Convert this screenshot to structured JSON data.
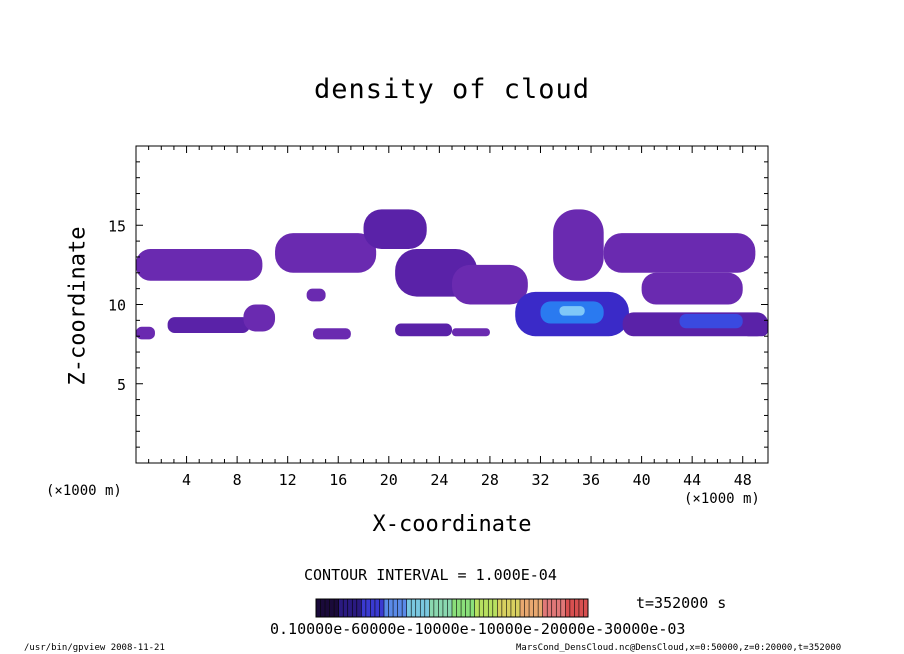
{
  "chart_data": {
    "type": "heatmap",
    "title": "density of cloud",
    "xlabel": "X-coordinate",
    "ylabel": "Z-coordinate",
    "x_unit_left": "(×1000 m)",
    "x_unit_right": "(×1000 m)",
    "xlim": [
      0,
      50
    ],
    "ylim": [
      0,
      20
    ],
    "x_ticks": [
      4,
      8,
      12,
      16,
      20,
      24,
      28,
      32,
      36,
      40,
      44,
      48
    ],
    "y_ticks": [
      5,
      10,
      15
    ],
    "contour_interval": "CONTOUR INTERVAL = 1.000E-04",
    "time_label": "t=352000 s",
    "colorbar_labels": "0.10000e-60000e-10000e-10000e-20000e-30000e-03",
    "colorbar_colors": [
      "#1a0a3a",
      "#2a1a80",
      "#3a3ad0",
      "#5a8ae8",
      "#7ac8e0",
      "#8ad8b0",
      "#8ae07a",
      "#b8e060",
      "#d8d060",
      "#e8a870",
      "#e07878",
      "#d85050"
    ],
    "cloud_regions": [
      {
        "x0": 0,
        "x1": 10,
        "z0": 11.5,
        "z1": 13.5,
        "level": 1
      },
      {
        "x0": 0,
        "x1": 1.5,
        "z0": 7.8,
        "z1": 8.6,
        "level": 1
      },
      {
        "x0": 2.5,
        "x1": 9,
        "z0": 8.2,
        "z1": 9.2,
        "level": 2
      },
      {
        "x0": 8.5,
        "x1": 11,
        "z0": 8.3,
        "z1": 10,
        "level": 1
      },
      {
        "x0": 11,
        "x1": 19,
        "z0": 12,
        "z1": 14.5,
        "level": 1
      },
      {
        "x0": 18,
        "x1": 23,
        "z0": 13.5,
        "z1": 16,
        "level": 2
      },
      {
        "x0": 13.5,
        "x1": 15,
        "z0": 10.2,
        "z1": 11,
        "level": 1
      },
      {
        "x0": 14,
        "x1": 17,
        "z0": 7.8,
        "z1": 8.5,
        "level": 1
      },
      {
        "x0": 20.5,
        "x1": 27,
        "z0": 10.5,
        "z1": 13.5,
        "level": 2
      },
      {
        "x0": 25,
        "x1": 31,
        "z0": 10,
        "z1": 12.5,
        "level": 1
      },
      {
        "x0": 20.5,
        "x1": 25,
        "z0": 8,
        "z1": 8.8,
        "level": 2
      },
      {
        "x0": 25,
        "x1": 28,
        "z0": 8,
        "z1": 8.5,
        "level": 1
      },
      {
        "x0": 30,
        "x1": 39,
        "z0": 8,
        "z1": 10.8,
        "level": 3
      },
      {
        "x0": 32,
        "x1": 37,
        "z0": 8.8,
        "z1": 10.2,
        "level": 5
      },
      {
        "x0": 33.5,
        "x1": 35.5,
        "z0": 9.3,
        "z1": 9.9,
        "level": 6
      },
      {
        "x0": 33,
        "x1": 37,
        "z0": 11.5,
        "z1": 16,
        "level": 1
      },
      {
        "x0": 37,
        "x1": 49,
        "z0": 12,
        "z1": 14.5,
        "level": 1
      },
      {
        "x0": 40,
        "x1": 48,
        "z0": 10,
        "z1": 12,
        "level": 1
      },
      {
        "x0": 38.5,
        "x1": 50,
        "z0": 8,
        "z1": 9.5,
        "level": 2
      },
      {
        "x0": 43,
        "x1": 48,
        "z0": 8.5,
        "z1": 9.4,
        "level": 4
      },
      {
        "x0": 48,
        "x1": 50,
        "z0": 8,
        "z1": 8.8,
        "level": 2
      }
    ]
  },
  "footer_left": "/usr/bin/gpview   2008-11-21",
  "footer_right": "MarsCond_DensCloud.nc@DensCloud,x=0:50000,z=0:20000,t=352000"
}
